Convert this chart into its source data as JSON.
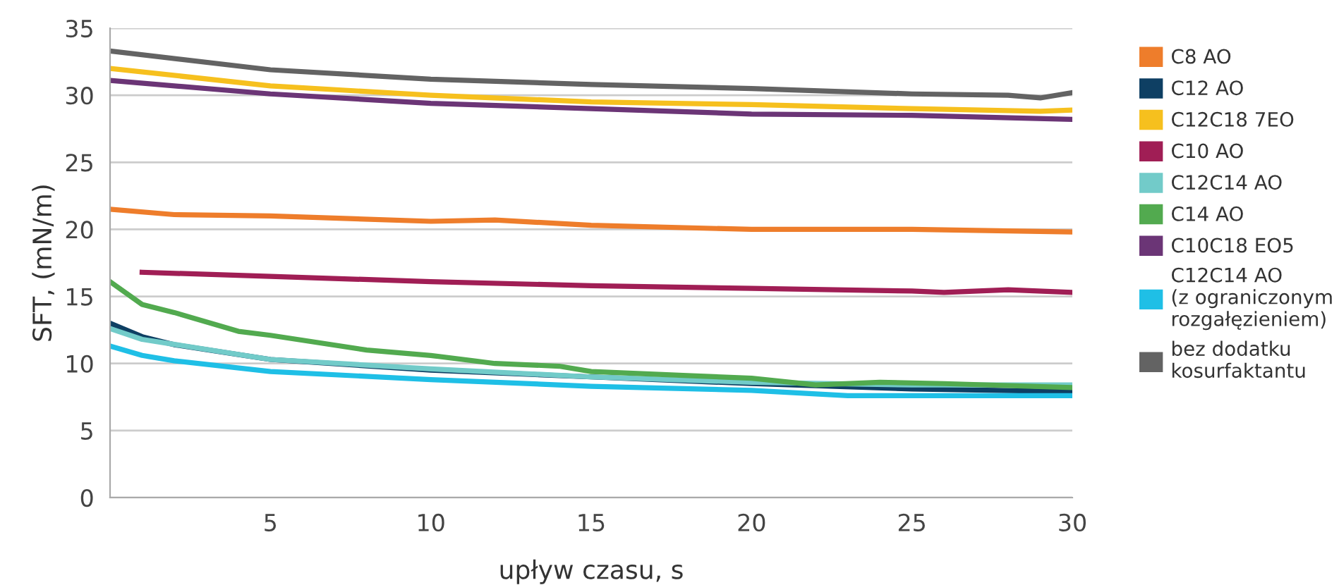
{
  "chart_data": {
    "type": "line",
    "xlabel": "upływ czasu, s",
    "ylabel": "SFT, (mN/m)",
    "xlim": [
      0,
      30
    ],
    "ylim": [
      0,
      35
    ],
    "xticks": [
      5,
      10,
      15,
      20,
      25,
      30
    ],
    "yticks": [
      0,
      5,
      10,
      15,
      20,
      25,
      30,
      35
    ],
    "grid": "y",
    "legend": "right",
    "marker": "none",
    "line_style": "solid",
    "series": [
      {
        "name": "C8 AO",
        "color": "#ee7d2b",
        "x": [
          0,
          2,
          5,
          10,
          12,
          15,
          20,
          25,
          30
        ],
        "values": [
          21.5,
          21.1,
          21.0,
          20.6,
          20.7,
          20.3,
          20.0,
          20.0,
          19.8
        ]
      },
      {
        "name": "C12 AO",
        "color": "#0e3f63",
        "x": [
          0,
          1,
          2,
          5,
          10,
          15,
          20,
          25,
          30
        ],
        "values": [
          13.0,
          12.0,
          11.4,
          10.3,
          9.5,
          9.0,
          8.5,
          8.1,
          7.9
        ]
      },
      {
        "name": "C12C18 7EO",
        "color": "#f6c01e",
        "x": [
          0,
          5,
          10,
          15,
          20,
          25,
          29,
          30
        ],
        "values": [
          32.0,
          30.7,
          30.0,
          29.5,
          29.3,
          29.0,
          28.8,
          28.9
        ]
      },
      {
        "name": "C10 AO",
        "color": "#a01e55",
        "x": [
          1,
          5,
          10,
          15,
          20,
          25,
          26,
          28,
          30
        ],
        "values": [
          16.8,
          16.5,
          16.1,
          15.8,
          15.6,
          15.4,
          15.3,
          15.5,
          15.3
        ]
      },
      {
        "name": "C12C14 AO",
        "color": "#72cbc9",
        "x": [
          0,
          1,
          5,
          10,
          15,
          20,
          25,
          30
        ],
        "values": [
          12.6,
          11.8,
          10.3,
          9.6,
          9.0,
          8.6,
          8.4,
          8.4
        ]
      },
      {
        "name": "C14 AO",
        "color": "#52aa4f",
        "x": [
          0,
          1,
          2,
          4,
          5,
          8,
          10,
          12,
          14,
          15,
          18,
          20,
          22,
          24,
          26,
          30
        ],
        "values": [
          16.1,
          14.4,
          13.8,
          12.4,
          12.1,
          11.0,
          10.6,
          10.0,
          9.8,
          9.4,
          9.1,
          8.9,
          8.4,
          8.6,
          8.5,
          8.2
        ]
      },
      {
        "name": "C10C18 EO5",
        "color": "#6b3576",
        "x": [
          0,
          5,
          10,
          15,
          20,
          25,
          30
        ],
        "values": [
          31.1,
          30.1,
          29.4,
          29.0,
          28.6,
          28.5,
          28.2
        ]
      },
      {
        "name": "C12C14 AO\n(z ograniczonym\nrozgałęzieniem)",
        "color": "#1fbfe6",
        "x": [
          0,
          1,
          2,
          5,
          10,
          15,
          20,
          23,
          25,
          30
        ],
        "values": [
          11.3,
          10.6,
          10.2,
          9.4,
          8.8,
          8.3,
          8.0,
          7.6,
          7.6,
          7.6
        ]
      },
      {
        "name": "bez dodatku\nkosurfaktantu",
        "color": "#636363",
        "x": [
          0,
          5,
          10,
          15,
          20,
          25,
          28,
          29,
          30
        ],
        "values": [
          33.3,
          31.9,
          31.2,
          30.8,
          30.5,
          30.1,
          30.0,
          29.8,
          30.2
        ]
      }
    ]
  }
}
